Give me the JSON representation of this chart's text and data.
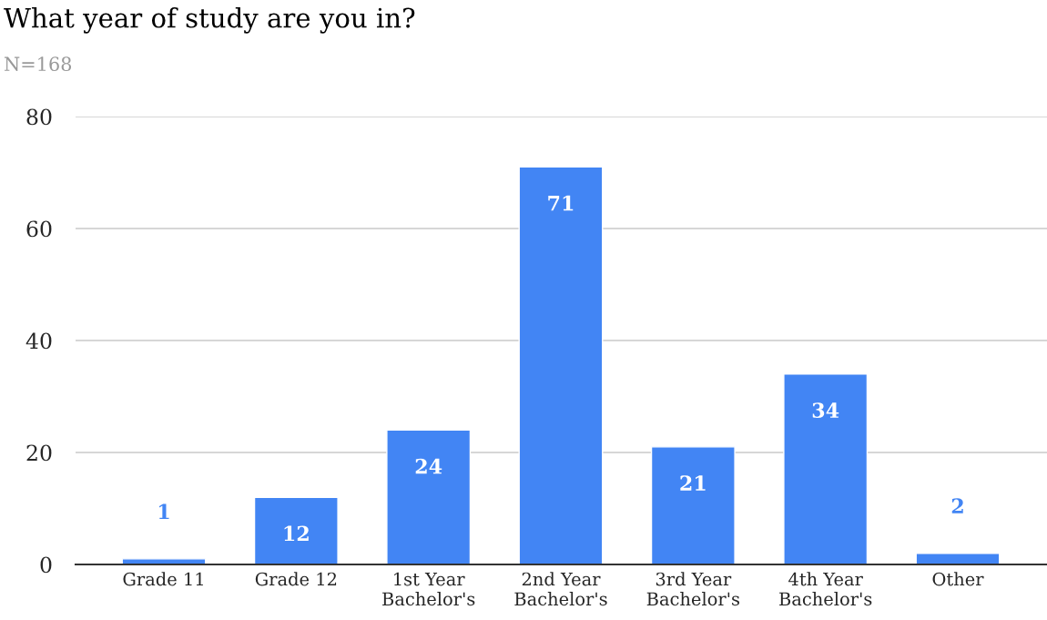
{
  "chart_data": {
    "type": "bar",
    "title": "What year of study are you in?",
    "subtitle": "N=168",
    "categories": [
      "Grade 11",
      "Grade 12",
      "1st Year\nBachelor's",
      "2nd Year\nBachelor's",
      "3rd Year\nBachelor's",
      "4th Year\nBachelor's",
      "Other"
    ],
    "values": [
      1,
      12,
      24,
      71,
      21,
      34,
      2
    ],
    "color": "#4285f4",
    "ylim": [
      0,
      80
    ],
    "yticks": [
      0,
      20,
      40,
      60,
      80
    ],
    "grid": "y",
    "data_labels": true,
    "legend": false
  }
}
